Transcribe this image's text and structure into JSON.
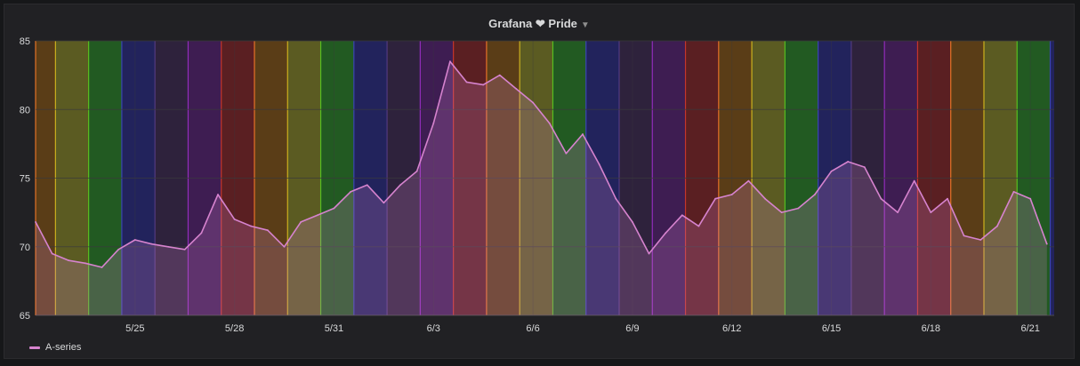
{
  "panel": {
    "title": "Grafana ❤ Pride",
    "menu_icon": "caret-down-icon"
  },
  "legend": {
    "items": [
      {
        "label": "A-series",
        "color": "#d683ce"
      }
    ]
  },
  "colors": {
    "background": "#212124",
    "grid": "#3a3a3d",
    "axis_text": "#d8d9da",
    "series_line": "#d683ce",
    "series_fill": "rgba(214,131,206,0.22)",
    "band_cycle": [
      {
        "fill": "#5a3d17",
        "line": "#ff7f2a"
      },
      {
        "fill": "#5b5b22",
        "line": "#e0c21f"
      },
      {
        "fill": "#225a22",
        "line": "#5dd020"
      },
      {
        "fill": "#22235c",
        "line": "#3f47c8"
      },
      {
        "fill": "#2e223c",
        "line": "#5b3f8a"
      },
      {
        "fill": "#3e1d52",
        "line": "#a22fd0"
      },
      {
        "fill": "#5a1f22",
        "line": "#d93a2a"
      }
    ]
  },
  "chart_data": {
    "type": "line",
    "title": "Grafana ❤ Pride",
    "xlabel": "",
    "ylabel": "",
    "x_start": "5/22",
    "x_end": "6/21",
    "x_unit": "day",
    "ylim": [
      65,
      85
    ],
    "yticks": [
      65,
      70,
      75,
      80,
      85
    ],
    "xticks": [
      "5/25",
      "5/28",
      "5/31",
      "6/3",
      "6/6",
      "6/9",
      "6/12",
      "6/15",
      "6/18",
      "6/21"
    ],
    "grid": true,
    "legend_position": "bottom-left",
    "series": [
      {
        "name": "A-series",
        "x": [
          "5/22",
          "5/22",
          "5/23",
          "5/23",
          "5/24",
          "5/24",
          "5/25",
          "5/25",
          "5/26",
          "5/26",
          "5/27",
          "5/27",
          "5/28",
          "5/28",
          "5/29",
          "5/29",
          "5/30",
          "5/30",
          "5/31",
          "5/31",
          "6/1",
          "6/1",
          "6/2",
          "6/2",
          "6/3",
          "6/3",
          "6/4",
          "6/4",
          "6/5",
          "6/5",
          "6/6",
          "6/6",
          "6/7",
          "6/7",
          "6/8",
          "6/8",
          "6/9",
          "6/9",
          "6/10",
          "6/10",
          "6/11",
          "6/11",
          "6/12",
          "6/12",
          "6/13",
          "6/13",
          "6/14",
          "6/14",
          "6/15",
          "6/15",
          "6/16",
          "6/16",
          "6/17",
          "6/17",
          "6/18",
          "6/18",
          "6/19",
          "6/19",
          "6/20",
          "6/20",
          "6/21",
          "6/21"
        ],
        "values": [
          71.8,
          69.5,
          69.0,
          68.8,
          68.5,
          69.8,
          70.5,
          70.2,
          70.0,
          69.8,
          71.0,
          73.8,
          72.0,
          71.5,
          71.2,
          70.0,
          71.8,
          72.3,
          72.8,
          74.0,
          74.5,
          73.2,
          74.5,
          75.5,
          79.0,
          83.5,
          82.0,
          81.8,
          82.5,
          81.5,
          80.5,
          79.0,
          76.8,
          78.2,
          76.0,
          73.5,
          71.8,
          69.5,
          71.0,
          72.3,
          71.5,
          73.5,
          73.8,
          74.8,
          73.5,
          72.5,
          72.8,
          73.8,
          75.5,
          76.2,
          75.8,
          73.5,
          72.5,
          74.8,
          72.5,
          73.5,
          70.8,
          70.5,
          71.5,
          74.0,
          73.5,
          70.2
        ]
      }
    ]
  }
}
